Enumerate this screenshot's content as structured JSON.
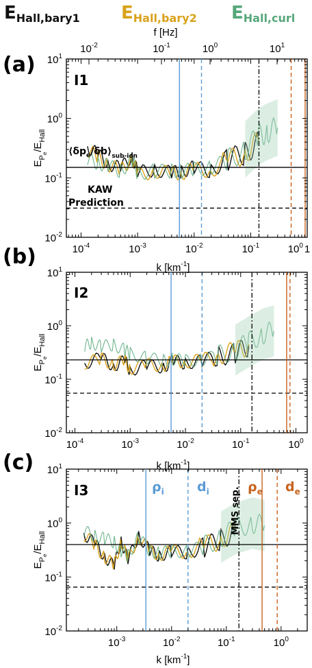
{
  "header": {
    "legend": [
      {
        "base": "E",
        "sub": "Hall,bary1",
        "color": "#111111"
      },
      {
        "base": "E",
        "sub": "Hall,bary2",
        "color": "#d9a21b"
      },
      {
        "base": "E",
        "sub": "Hall,curl",
        "color": "#55a77a"
      }
    ],
    "top_axis_label": "f [Hz]",
    "top_ticks": [
      {
        "base": "10",
        "exp": "-2"
      },
      {
        "base": "10",
        "exp": "-1"
      },
      {
        "base": "10",
        "exp": "0"
      },
      {
        "base": "10",
        "exp": "1"
      }
    ]
  },
  "panels": [
    {
      "letter": "(a)",
      "id": "I1",
      "xlabel": "k [km",
      "xlabel_exp": "-1",
      "xlabel_end": "]",
      "ylabel": "E",
      "ylabel_sub1": "P",
      "ylabel_sub2": "e",
      "ylabel_den": "/E",
      "ylabel_den_sub": "Hall",
      "x_ticks": [
        {
          "base": "10",
          "exp": "-4"
        },
        {
          "base": "10",
          "exp": "-3"
        },
        {
          "base": "10",
          "exp": "-2"
        },
        {
          "base": "10",
          "exp": "-1"
        },
        {
          "base": "10",
          "exp": "0"
        },
        {
          "base": "1",
          "exp": ""
        }
      ],
      "y_ticks": [
        {
          "base": "10",
          "exp": "1"
        },
        {
          "base": "10",
          "exp": "0"
        },
        {
          "base": "10",
          "exp": "-1"
        },
        {
          "base": "10",
          "exp": "-2"
        }
      ],
      "annotations": {
        "ratio_label": "⟨δp",
        "ratio_label_sub": "e",
        "ratio_label_mid": "/δb⟩",
        "ratio_label_sub2": "sub-ion",
        "kaw_line1": "KAW",
        "kaw_line2": "Prediction"
      }
    },
    {
      "letter": "(b)",
      "id": "I2",
      "xlabel": "k [km",
      "xlabel_exp": "-1",
      "xlabel_end": "]",
      "ylabel": "E",
      "ylabel_sub1": "P",
      "ylabel_sub2": "e",
      "ylabel_den": "/E",
      "ylabel_den_sub": "Hall",
      "x_ticks": [
        {
          "base": "10",
          "exp": "-4"
        },
        {
          "base": "10",
          "exp": "-3"
        },
        {
          "base": "10",
          "exp": "-2"
        },
        {
          "base": "10",
          "exp": "-1"
        },
        {
          "base": "10",
          "exp": "0"
        }
      ],
      "y_ticks": [
        {
          "base": "10",
          "exp": "1"
        },
        {
          "base": "10",
          "exp": "0"
        },
        {
          "base": "10",
          "exp": "-1"
        },
        {
          "base": "10",
          "exp": "-2"
        }
      ]
    },
    {
      "letter": "(c)",
      "id": "I3",
      "xlabel": "k [km",
      "xlabel_exp": "-1",
      "xlabel_end": "]",
      "ylabel": "E",
      "ylabel_sub1": "P",
      "ylabel_sub2": "e",
      "ylabel_den": "/E",
      "ylabel_den_sub": "Hall",
      "x_ticks": [
        {
          "base": "10",
          "exp": "-3"
        },
        {
          "base": "10",
          "exp": "-2"
        },
        {
          "base": "10",
          "exp": "-1"
        },
        {
          "base": "10",
          "exp": "0"
        }
      ],
      "y_ticks": [
        {
          "base": "10",
          "exp": "1"
        },
        {
          "base": "10",
          "exp": "0"
        },
        {
          "base": "10",
          "exp": "-1"
        },
        {
          "base": "10",
          "exp": "-2"
        }
      ],
      "annotations": {
        "rho_i": "ρ",
        "rho_i_sub": "i",
        "d_i": "d",
        "d_i_sub": "i",
        "mms_sep": "MMS sep.",
        "rho_e": "ρ",
        "rho_e_sub": "e",
        "d_e": "d",
        "d_e_sub": "e"
      }
    }
  ],
  "chart_data": [
    {
      "type": "line",
      "panel": "(a)",
      "label": "I1",
      "x_scale": "log",
      "y_scale": "log",
      "xlim": [
        5.5e-05,
        1.0
      ],
      "ylim": [
        0.01,
        10
      ],
      "top_axis": {
        "label": "f [Hz]",
        "scale": "log",
        "ticks": [
          0.01,
          0.1,
          1,
          10
        ]
      },
      "series": [
        {
          "name": "E_Hall,bary1",
          "color": "#111111",
          "points": [
            [
              0.00013,
              0.34
            ],
            [
              0.0002,
              0.24
            ],
            [
              0.0003,
              0.18
            ],
            [
              0.0005,
              0.14
            ],
            [
              0.0008,
              0.24
            ],
            [
              0.001,
              0.12
            ],
            [
              0.002,
              0.14
            ],
            [
              0.004,
              0.12
            ],
            [
              0.006,
              0.13
            ],
            [
              0.01,
              0.15
            ],
            [
              0.02,
              0.13
            ],
            [
              0.04,
              0.2
            ],
            [
              0.08,
              0.26
            ],
            [
              0.14,
              0.4
            ]
          ]
        },
        {
          "name": "E_Hall,bary2",
          "color": "#d9a21b",
          "points": [
            [
              0.00013,
              0.3
            ],
            [
              0.0002,
              0.22
            ],
            [
              0.0003,
              0.17
            ],
            [
              0.0005,
              0.13
            ],
            [
              0.0008,
              0.22
            ],
            [
              0.001,
              0.11
            ],
            [
              0.002,
              0.13
            ],
            [
              0.004,
              0.12
            ],
            [
              0.006,
              0.12
            ],
            [
              0.01,
              0.14
            ],
            [
              0.02,
              0.13
            ],
            [
              0.04,
              0.19
            ],
            [
              0.08,
              0.27
            ],
            [
              0.14,
              0.42
            ]
          ]
        },
        {
          "name": "E_Hall,curl",
          "color": "#55a77a",
          "points": [
            [
              0.00013,
              0.2
            ],
            [
              0.0002,
              0.18
            ],
            [
              0.0003,
              0.16
            ],
            [
              0.0005,
              0.13
            ],
            [
              0.0008,
              0.2
            ],
            [
              0.001,
              0.12
            ],
            [
              0.002,
              0.13
            ],
            [
              0.004,
              0.13
            ],
            [
              0.006,
              0.13
            ],
            [
              0.01,
              0.14
            ],
            [
              0.02,
              0.15
            ],
            [
              0.04,
              0.2
            ],
            [
              0.08,
              0.3
            ],
            [
              0.14,
              0.5
            ],
            [
              0.2,
              0.6
            ],
            [
              0.3,
              0.7
            ]
          ]
        }
      ],
      "hlines": [
        {
          "y": 0.15,
          "style": "solid",
          "label": "⟨δpe/δb⟩sub-ion"
        },
        {
          "y": 0.031,
          "style": "dashed",
          "label": "KAW Prediction"
        }
      ],
      "vlines": [
        {
          "x": 0.0055,
          "color": "#5a9bd5",
          "style": "solid"
        },
        {
          "x": 0.0135,
          "color": "#5a9bd5",
          "style": "dashed"
        },
        {
          "x": 0.14,
          "color": "#111111",
          "style": "dashdot"
        },
        {
          "x": 0.52,
          "color": "#c8621e",
          "style": "dashed"
        },
        {
          "x": 0.92,
          "color": "#c8621e",
          "style": "solid"
        }
      ]
    },
    {
      "type": "line",
      "panel": "(b)",
      "label": "I2",
      "x_scale": "log",
      "y_scale": "log",
      "xlim": [
        7e-05,
        1.6
      ],
      "ylim": [
        0.01,
        10
      ],
      "series": [
        {
          "name": "E_Hall,bary1",
          "color": "#111111",
          "points": [
            [
              0.00015,
              0.2
            ],
            [
              0.0003,
              0.25
            ],
            [
              0.0005,
              0.18
            ],
            [
              0.0008,
              0.22
            ],
            [
              0.001,
              0.15
            ],
            [
              0.002,
              0.18
            ],
            [
              0.004,
              0.17
            ],
            [
              0.006,
              0.22
            ],
            [
              0.01,
              0.2
            ],
            [
              0.02,
              0.22
            ],
            [
              0.04,
              0.28
            ],
            [
              0.08,
              0.3
            ],
            [
              0.14,
              0.42
            ]
          ]
        },
        {
          "name": "E_Hall,bary2",
          "color": "#d9a21b",
          "points": [
            [
              0.00015,
              0.2
            ],
            [
              0.0003,
              0.24
            ],
            [
              0.0005,
              0.19
            ],
            [
              0.0008,
              0.22
            ],
            [
              0.001,
              0.16
            ],
            [
              0.002,
              0.19
            ],
            [
              0.004,
              0.18
            ],
            [
              0.006,
              0.22
            ],
            [
              0.01,
              0.21
            ],
            [
              0.02,
              0.23
            ],
            [
              0.04,
              0.3
            ],
            [
              0.08,
              0.32
            ],
            [
              0.14,
              0.45
            ]
          ]
        },
        {
          "name": "E_Hall,curl",
          "color": "#55a77a",
          "points": [
            [
              0.00015,
              0.4
            ],
            [
              0.0002,
              0.5
            ],
            [
              0.0003,
              0.4
            ],
            [
              0.0005,
              0.45
            ],
            [
              0.0008,
              0.35
            ],
            [
              0.001,
              0.3
            ],
            [
              0.002,
              0.25
            ],
            [
              0.004,
              0.22
            ],
            [
              0.006,
              0.24
            ],
            [
              0.01,
              0.22
            ],
            [
              0.02,
              0.23
            ],
            [
              0.04,
              0.28
            ],
            [
              0.08,
              0.35
            ],
            [
              0.14,
              0.5
            ],
            [
              0.25,
              0.7
            ],
            [
              0.4,
              0.8
            ]
          ]
        }
      ],
      "hlines": [
        {
          "y": 0.23,
          "style": "solid"
        },
        {
          "y": 0.055,
          "style": "dashed"
        }
      ],
      "vlines": [
        {
          "x": 0.0055,
          "color": "#5a9bd5",
          "style": "solid"
        },
        {
          "x": 0.02,
          "color": "#5a9bd5",
          "style": "dashed"
        },
        {
          "x": 0.16,
          "color": "#111111",
          "style": "dashdot"
        },
        {
          "x": 0.68,
          "color": "#c8621e",
          "style": "solid"
        },
        {
          "x": 0.78,
          "color": "#c8621e",
          "style": "dashed"
        }
      ]
    },
    {
      "type": "line",
      "panel": "(c)",
      "label": "I3",
      "x_scale": "log",
      "y_scale": "log",
      "xlim": [
        0.00012,
        3.0
      ],
      "ylim": [
        0.01,
        10
      ],
      "series": [
        {
          "name": "E_Hall,bary1",
          "color": "#111111",
          "points": [
            [
              0.00025,
              0.65
            ],
            [
              0.0004,
              0.4
            ],
            [
              0.0006,
              0.25
            ],
            [
              0.0009,
              0.15
            ],
            [
              0.0012,
              0.5
            ],
            [
              0.0016,
              0.2
            ],
            [
              0.0025,
              0.6
            ],
            [
              0.004,
              0.3
            ],
            [
              0.006,
              0.25
            ],
            [
              0.01,
              0.3
            ],
            [
              0.02,
              0.28
            ],
            [
              0.04,
              0.35
            ],
            [
              0.08,
              0.5
            ],
            [
              0.15,
              0.7
            ]
          ]
        },
        {
          "name": "E_Hall,bary2",
          "color": "#d9a21b",
          "points": [
            [
              0.00025,
              0.62
            ],
            [
              0.0004,
              0.38
            ],
            [
              0.0006,
              0.24
            ],
            [
              0.0009,
              0.16
            ],
            [
              0.0012,
              0.48
            ],
            [
              0.0016,
              0.2
            ],
            [
              0.0025,
              0.58
            ],
            [
              0.004,
              0.3
            ],
            [
              0.006,
              0.26
            ],
            [
              0.01,
              0.3
            ],
            [
              0.02,
              0.29
            ],
            [
              0.04,
              0.36
            ],
            [
              0.08,
              0.52
            ],
            [
              0.15,
              0.72
            ]
          ]
        },
        {
          "name": "E_Hall,curl",
          "color": "#55a77a",
          "points": [
            [
              0.00025,
              0.7
            ],
            [
              0.0004,
              0.6
            ],
            [
              0.0006,
              0.5
            ],
            [
              0.0009,
              0.45
            ],
            [
              0.0012,
              0.3
            ],
            [
              0.0016,
              0.25
            ],
            [
              0.0025,
              0.55
            ],
            [
              0.004,
              0.3
            ],
            [
              0.006,
              0.28
            ],
            [
              0.01,
              0.3
            ],
            [
              0.02,
              0.3
            ],
            [
              0.04,
              0.38
            ],
            [
              0.08,
              0.55
            ],
            [
              0.15,
              0.8
            ],
            [
              0.3,
              1.0
            ],
            [
              0.5,
              0.9
            ]
          ]
        }
      ],
      "hlines": [
        {
          "y": 0.4,
          "style": "solid"
        },
        {
          "y": 0.065,
          "style": "dashed"
        }
      ],
      "vlines": [
        {
          "x": 0.0034,
          "color": "#5a9bd5",
          "style": "solid",
          "label": "ρi"
        },
        {
          "x": 0.02,
          "color": "#5a9bd5",
          "style": "dashed",
          "label": "di"
        },
        {
          "x": 0.17,
          "color": "#111111",
          "style": "dashdot",
          "label": "MMS sep."
        },
        {
          "x": 0.45,
          "color": "#c8621e",
          "style": "solid",
          "label": "ρe"
        },
        {
          "x": 0.85,
          "color": "#c8621e",
          "style": "dashed",
          "label": "de"
        }
      ]
    }
  ]
}
